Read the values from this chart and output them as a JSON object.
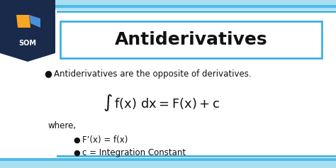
{
  "bg_color": "#ffffff",
  "title": "Antiderivatives",
  "title_box_edge_color": "#29abe2",
  "title_box_fill": "#ffffff",
  "bullet1": "Antiderivatives are the opposite of derivatives.",
  "where_label": "where,",
  "bullet2": "F’(x) = f(x)",
  "bullet3": "c = Integration Constant",
  "stripe_color_dark": "#29abe2",
  "stripe_color_light": "#a8dff0",
  "logo_bg": "#1a2a4a",
  "text_color": "#111111",
  "logo_orange": "#f5a623",
  "logo_blue": "#4a90d9",
  "logo_white": "#ffffff"
}
